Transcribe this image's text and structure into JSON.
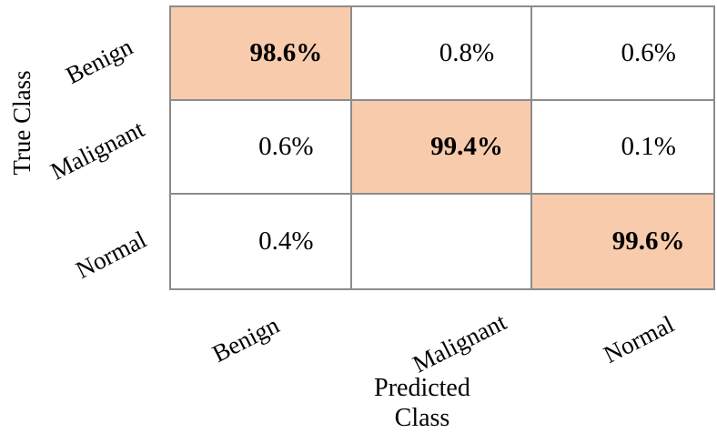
{
  "figure": {
    "type": "confusion-matrix",
    "background": "#ffffff"
  },
  "colors": {
    "highlight": "#F8CBAD",
    "grid_border": "#8C8C8C",
    "text": "#000000"
  },
  "labels": {
    "y_axis": "True Class",
    "x_axis_line1": "Predicted",
    "x_axis_line2": "Class"
  },
  "rows": [
    {
      "label": "Benign"
    },
    {
      "label": "Malignant"
    },
    {
      "label": "Normal"
    }
  ],
  "cols": [
    {
      "label": "Benign"
    },
    {
      "label": "Malignant"
    },
    {
      "label": "Normal"
    }
  ],
  "cells": [
    {
      "value": "98.6%",
      "highlight": true
    },
    {
      "value": "0.8%",
      "highlight": false
    },
    {
      "value": "0.6%",
      "highlight": false
    },
    {
      "value": "0.6%",
      "highlight": false
    },
    {
      "value": "99.4%",
      "highlight": true
    },
    {
      "value": "0.1%",
      "highlight": false
    },
    {
      "value": "0.4%",
      "highlight": false
    },
    {
      "value": "",
      "highlight": false
    },
    {
      "value": "99.6%",
      "highlight": true
    }
  ],
  "chart_data": {
    "type": "heatmap",
    "title": "",
    "xlabel": "Predicted Class",
    "ylabel": "True Class",
    "x_categories": [
      "Benign",
      "Malignant",
      "Normal"
    ],
    "y_categories": [
      "Benign",
      "Malignant",
      "Normal"
    ],
    "matrix_percent": [
      [
        98.6,
        0.8,
        0.6
      ],
      [
        0.6,
        99.4,
        0.1
      ],
      [
        0.4,
        null,
        99.6
      ]
    ],
    "cell_text": [
      [
        "98.6%",
        "0.8%",
        "0.6%"
      ],
      [
        "0.6%",
        "99.4%",
        "0.1%"
      ],
      [
        "0.4%",
        "",
        "99.6%"
      ]
    ],
    "highlighted_cells": "diagonal",
    "highlight_color": "#F8CBAD",
    "grid": true,
    "legend": false
  }
}
